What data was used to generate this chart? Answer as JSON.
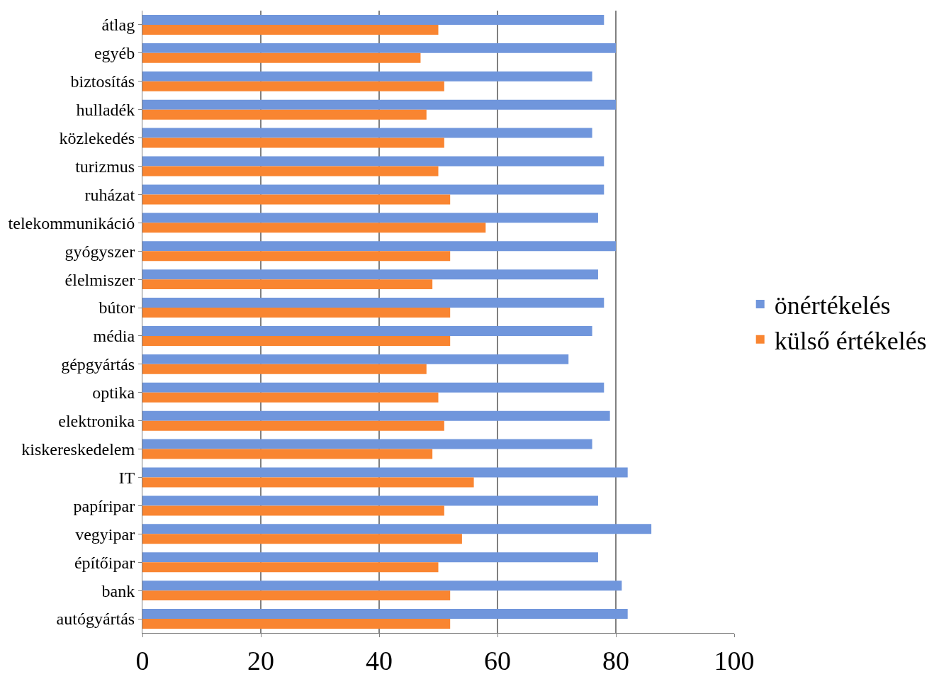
{
  "chart_data": {
    "type": "bar",
    "orientation": "horizontal",
    "categories": [
      "átlag",
      "egyéb",
      "biztosítás",
      "hulladék",
      "közlekedés",
      "turizmus",
      "ruházat",
      "telekommunikáció",
      "gyógyszer",
      "élelmiszer",
      "bútor",
      "média",
      "gépgyártás",
      "optika",
      "elektronika",
      "kiskereskedelem",
      "IT",
      "papíripar",
      "vegyipar",
      "építőipar",
      "bank",
      "autógyártás"
    ],
    "series": [
      {
        "name": "önértékelés",
        "color": "#7096dc",
        "values": [
          78,
          80,
          76,
          80,
          76,
          78,
          78,
          77,
          80,
          77,
          78,
          76,
          72,
          78,
          79,
          76,
          82,
          77,
          86,
          77,
          81,
          82
        ]
      },
      {
        "name": "külső értékelés",
        "color": "#f98531",
        "values": [
          50,
          47,
          51,
          48,
          51,
          50,
          52,
          58,
          52,
          49,
          52,
          52,
          48,
          50,
          51,
          49,
          56,
          51,
          54,
          50,
          52,
          52
        ]
      }
    ],
    "xlim": [
      0,
      100
    ],
    "xticks": [
      0,
      20,
      40,
      60,
      80,
      100
    ],
    "grid": "x",
    "legend": "right"
  }
}
